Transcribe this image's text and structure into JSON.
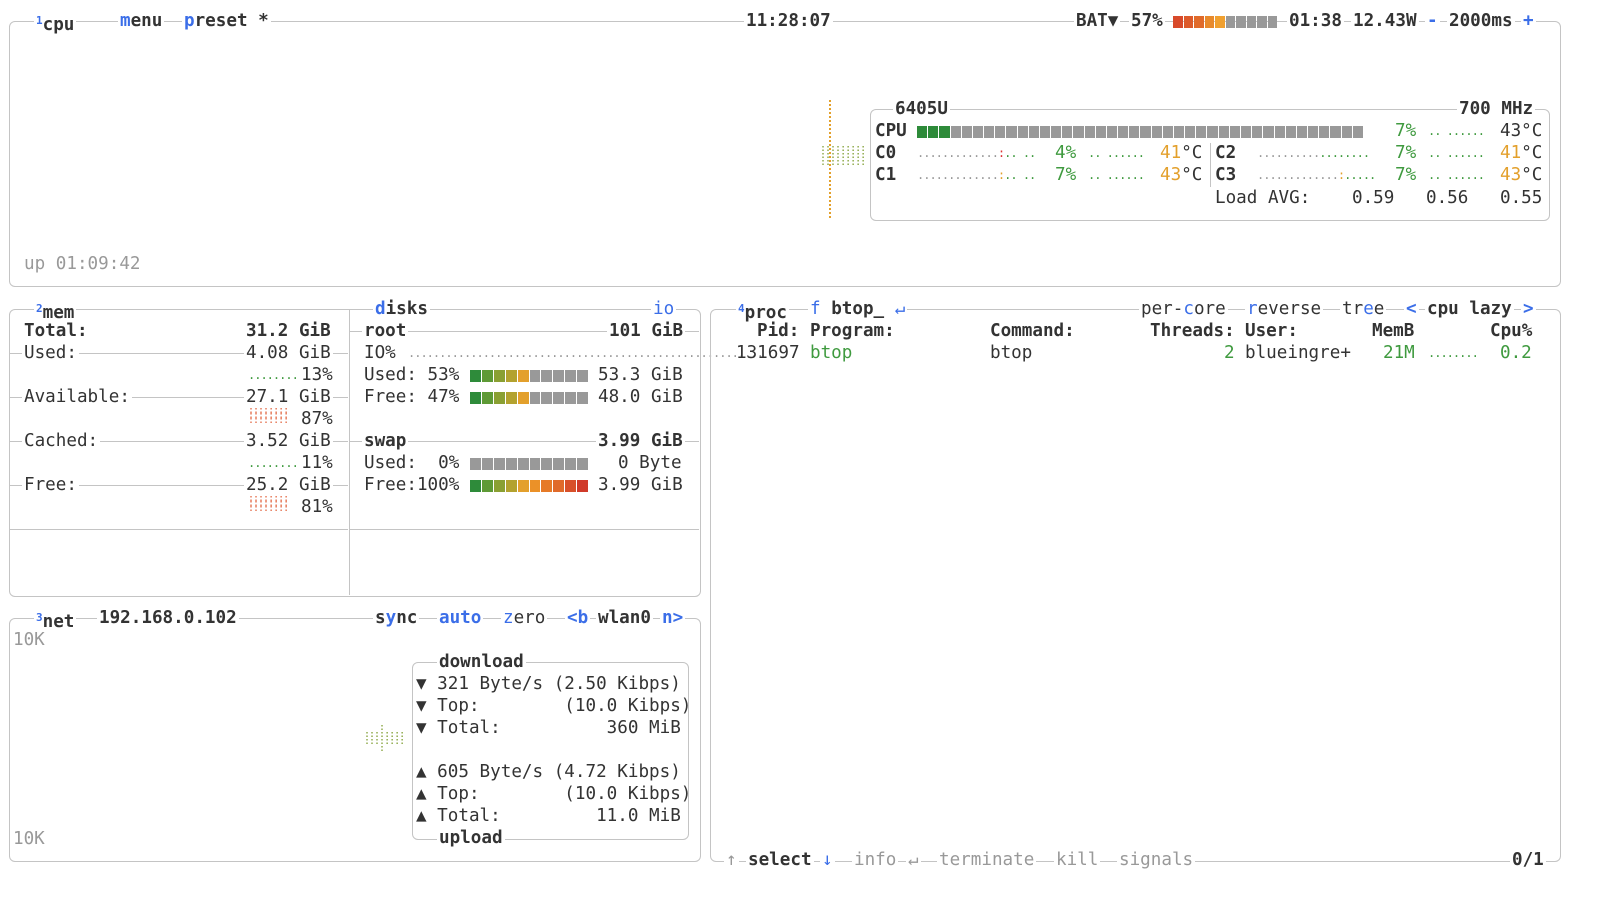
{
  "cpu_panel": {
    "number": "1",
    "title": "cpu",
    "menu": "menu",
    "preset": "preset *",
    "clock": "11:28:07",
    "battery": {
      "label": "BAT▼",
      "percent": "57%",
      "level": 0.57,
      "time": "01:38",
      "power": "12.43W"
    },
    "interval": {
      "minus": "-",
      "value": "2000ms",
      "plus": "+"
    },
    "uptime": "up 01:09:42",
    "cpu_name": "6405U",
    "freq": "700 MHz",
    "total": {
      "label": "CPU",
      "percent": "7%",
      "level": 0.07,
      "temp": "43°C"
    },
    "cores": [
      {
        "label": "C0",
        "percent": "4%",
        "temp": "41",
        "unit": "°C"
      },
      {
        "label": "C1",
        "percent": "7%",
        "temp": "43",
        "unit": "°C"
      },
      {
        "label": "C2",
        "percent": "7%",
        "temp": "41",
        "unit": "°C"
      },
      {
        "label": "C3",
        "percent": "7%",
        "temp": "43",
        "unit": "°C"
      }
    ],
    "load_avg": {
      "label": "Load AVG:",
      "values": [
        "0.59",
        "0.56",
        "0.55"
      ]
    }
  },
  "mem_panel": {
    "number": "2",
    "title": "mem",
    "total": {
      "label": "Total:",
      "value": "31.2 GiB"
    },
    "rows": [
      {
        "label": "Used:",
        "value": "4.08 GiB",
        "percent": "13%"
      },
      {
        "label": "Available:",
        "value": "27.1 GiB",
        "percent": "87%"
      },
      {
        "label": "Cached:",
        "value": "3.52 GiB",
        "percent": "11%"
      },
      {
        "label": "Free:",
        "value": "25.2 GiB",
        "percent": "81%"
      }
    ]
  },
  "disks_panel": {
    "title": "disks",
    "io_label": "io",
    "root": {
      "name": "root",
      "size": "101 GiB",
      "io": "IO%",
      "used": {
        "label": "Used: 53%",
        "level": 0.53,
        "value": "53.3 GiB"
      },
      "free": {
        "label": "Free: 47%",
        "level": 0.47,
        "value": "48.0 GiB"
      }
    },
    "swap": {
      "name": "swap",
      "size": "3.99 GiB",
      "used": {
        "label": "Used:  0%",
        "level": 0,
        "value": "0 Byte"
      },
      "free": {
        "label": "Free:100%",
        "level": 1.0,
        "value": "3.99 GiB"
      }
    }
  },
  "net_panel": {
    "number": "3",
    "title": "net",
    "ip": "192.168.0.102",
    "sync": "sync",
    "auto": "auto",
    "zero": "zero",
    "prev": "<b",
    "iface": "wlan0",
    "next": "n>",
    "scale_top": "10K",
    "scale_bottom": "10K",
    "download": {
      "title": "download",
      "rate": "▼ 321 Byte/s (2.50 Kibps)",
      "top": "▼ Top:        (10.0 Kibps)",
      "total": "▼ Total:          360 MiB"
    },
    "upload": {
      "title": "upload",
      "rate": "▲ 605 Byte/s (4.72 Kibps)",
      "top": "▲ Top:        (10.0 Kibps)",
      "total": "▲ Total:         11.0 MiB"
    }
  },
  "proc_panel": {
    "number": "4",
    "title": "proc",
    "filter_key": "f",
    "filter": "btop_",
    "filter_icon": "↵",
    "per_core": "per-core",
    "reverse": "reverse",
    "tree": "tree",
    "sort_prev": "<",
    "sort": "cpu lazy",
    "sort_next": ">",
    "columns": {
      "pid": "Pid:",
      "program": "Program:",
      "command": "Command:",
      "threads": "Threads:",
      "user": "User:",
      "mem": "MemB",
      "cpu": "Cpu%"
    },
    "rows": [
      {
        "pid": "131697",
        "program": "btop",
        "command": "btop",
        "threads": "2",
        "user": "blueingre+",
        "mem": "21M",
        "cpu": "0.2"
      }
    ],
    "footer": {
      "up": "↑",
      "select": "select",
      "down": "↓",
      "info": "info",
      "enter": "↵",
      "terminate": "terminate",
      "kill": "kill",
      "signals": "signals",
      "count": "0/1"
    }
  },
  "colors": {
    "accent": "#3b6ee8",
    "green": "#3f9a3f",
    "temp": "#e3a02c",
    "border": "#c4c4c4"
  }
}
